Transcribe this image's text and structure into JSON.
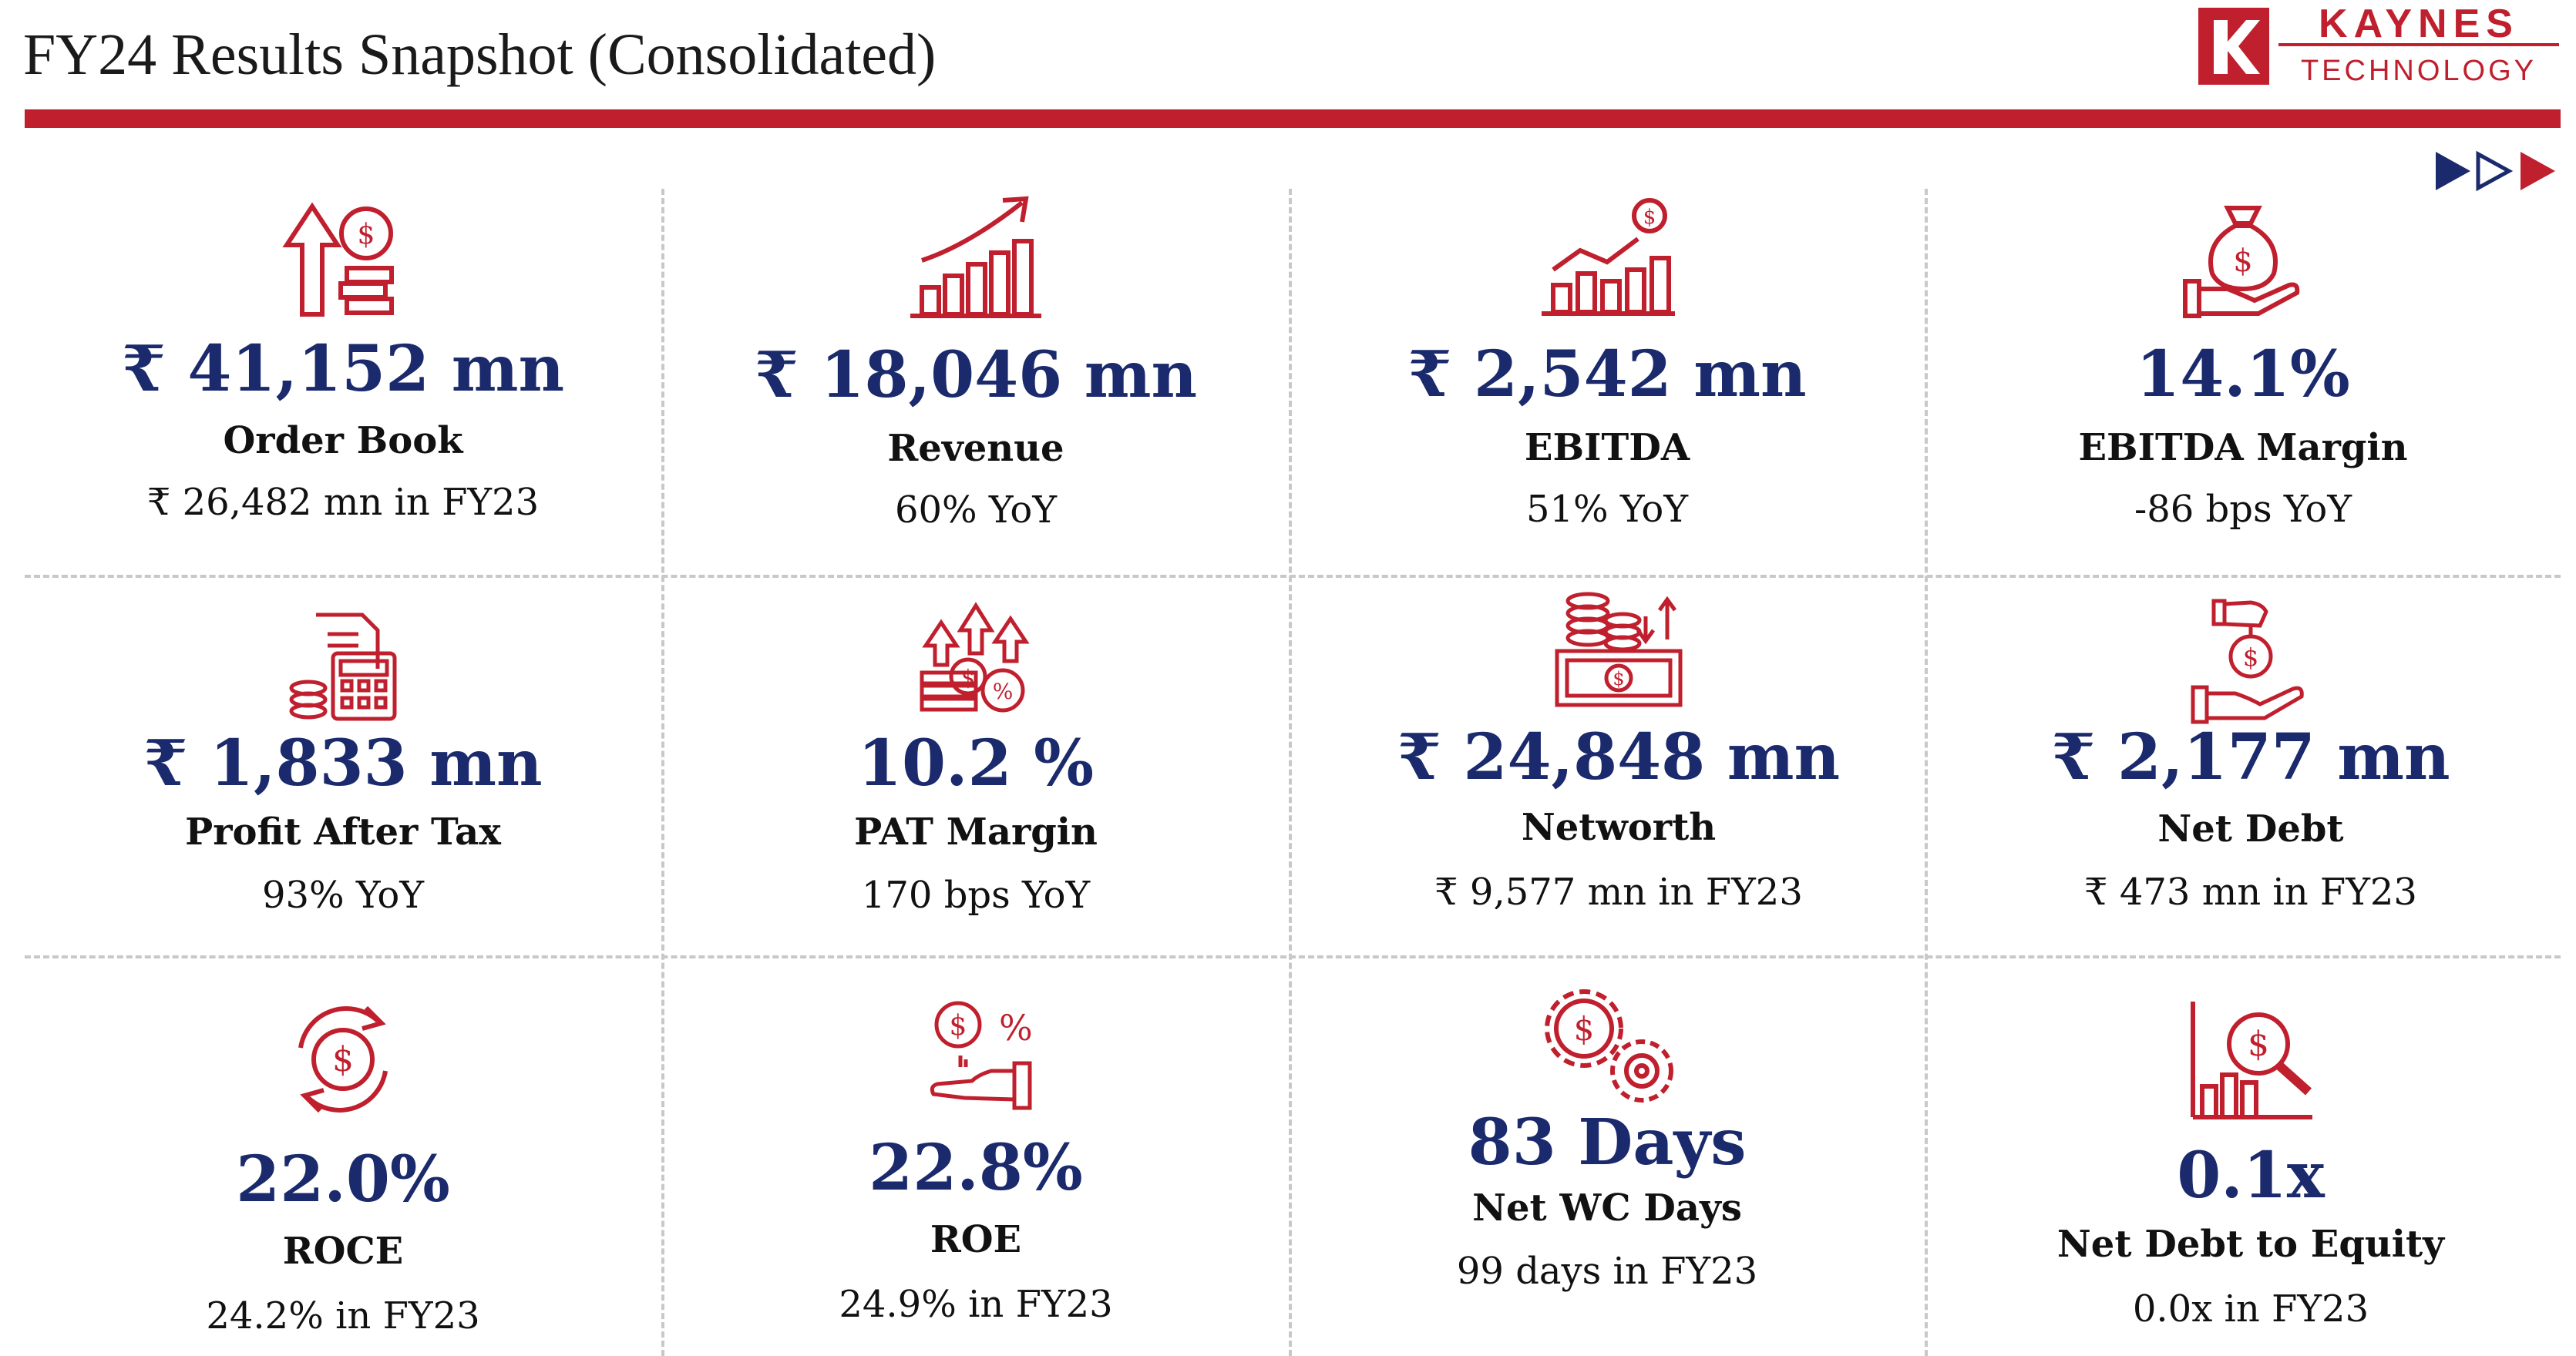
{
  "header": {
    "title": "FY24 Results Snapshot (Consolidated)",
    "logo_name": "KAYNES",
    "logo_sub": "TECHNOLOGY"
  },
  "colors": {
    "accent": "#c0202e",
    "value": "#1a2a6c",
    "navy": "#1a2a6c"
  },
  "kpis": [
    {
      "icon": "order-book-icon",
      "value": "₹ 41,152 mn",
      "label": "Order Book",
      "sub": "₹ 26,482 mn in FY23"
    },
    {
      "icon": "revenue-growth-icon",
      "value": "₹ 18,046 mn",
      "label": "Revenue",
      "sub": "60% YoY"
    },
    {
      "icon": "ebitda-chart-icon",
      "value": "₹ 2,542 mn",
      "label": "EBITDA",
      "sub": "51% YoY"
    },
    {
      "icon": "money-bag-hand-icon",
      "value": "14.1%",
      "label": "EBITDA Margin",
      "sub": "-86 bps YoY"
    },
    {
      "icon": "calculator-coins-icon",
      "value": "₹ 1,833 mn",
      "label": "Profit After Tax",
      "sub": "93% YoY"
    },
    {
      "icon": "percent-coins-arrows-icon",
      "value": "10.2 %",
      "label": "PAT Margin",
      "sub": "170 bps YoY"
    },
    {
      "icon": "banknote-coins-icon",
      "value": "₹ 24,848 mn",
      "label": "Networth",
      "sub": "₹ 9,577 mn in FY23"
    },
    {
      "icon": "debt-hand-icon",
      "value": "₹ 2,177 mn",
      "label": "Net Debt",
      "sub": "₹ 473 mn in FY23"
    },
    {
      "icon": "dollar-cycle-icon",
      "value": "22.0%",
      "label": "ROCE",
      "sub": "24.2% in FY23"
    },
    {
      "icon": "dollar-percent-hand-icon",
      "value": "22.8%",
      "label": "ROE",
      "sub": "24.9% in FY23"
    },
    {
      "icon": "gears-dollar-icon",
      "value": "83 Days",
      "label": "Net WC Days",
      "sub": "99 days  in FY23"
    },
    {
      "icon": "magnifier-dollar-chart-icon",
      "value": "0.1x",
      "label": "Net Debt to Equity",
      "sub": "0.0x in FY23"
    }
  ]
}
